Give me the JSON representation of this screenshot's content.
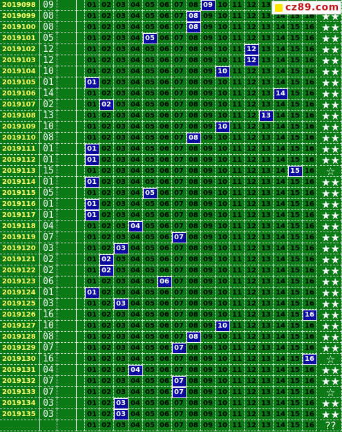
{
  "watermark": {
    "text": "cz89.com",
    "square_color": "#ffe400",
    "text_color": "#c0151a"
  },
  "colors": {
    "background": "#0b7a16",
    "highlight": "#0a0aa0",
    "issue_text": "#ffff66"
  },
  "numbers": [
    "01",
    "02",
    "03",
    "04",
    "05",
    "06",
    "07",
    "08",
    "09",
    "10",
    "11",
    "12",
    "13",
    "14",
    "15",
    "16"
  ],
  "rows": [
    {
      "issue": "2019098",
      "special": "09",
      "hit": 9,
      "stars": "☆★"
    },
    {
      "issue": "2019099",
      "special": "08",
      "hit": 8,
      "stars": "★★"
    },
    {
      "issue": "2019100",
      "special": "08",
      "hit": 8,
      "stars": "★★"
    },
    {
      "issue": "2019101",
      "special": "05",
      "hit": 5,
      "stars": "★★"
    },
    {
      "issue": "2019102",
      "special": "12",
      "hit": 12,
      "stars": "★★"
    },
    {
      "issue": "2019103",
      "special": "12",
      "hit": 12,
      "stars": "★★"
    },
    {
      "issue": "2019104",
      "special": "10",
      "hit": 10,
      "stars": "★★"
    },
    {
      "issue": "2019105",
      "special": "01",
      "hit": 1,
      "stars": "★★"
    },
    {
      "issue": "2019106",
      "special": "14",
      "hit": 14,
      "stars": "★★"
    },
    {
      "issue": "2019107",
      "special": "02",
      "hit": 2,
      "stars": "★★"
    },
    {
      "issue": "2019108",
      "special": "13",
      "hit": 13,
      "stars": "★★"
    },
    {
      "issue": "2019109",
      "special": "10",
      "hit": 10,
      "stars": "★★"
    },
    {
      "issue": "2019110",
      "special": "08",
      "hit": 8,
      "stars": "★★"
    },
    {
      "issue": "2019111",
      "special": "01",
      "hit": 1,
      "stars": "★★"
    },
    {
      "issue": "2019112",
      "special": "01",
      "hit": 1,
      "stars": "★★"
    },
    {
      "issue": "2019113",
      "special": "15",
      "hit": 15,
      "stars": "☆"
    },
    {
      "issue": "2019114",
      "special": "01",
      "hit": 1,
      "stars": "★★"
    },
    {
      "issue": "2019115",
      "special": "05",
      "hit": 5,
      "stars": "★★"
    },
    {
      "issue": "2019116",
      "special": "01",
      "hit": 1,
      "stars": "★★"
    },
    {
      "issue": "2019117",
      "special": "01",
      "hit": 1,
      "stars": "★★"
    },
    {
      "issue": "2019118",
      "special": "04",
      "hit": 4,
      "stars": "★★"
    },
    {
      "issue": "2019119",
      "special": "07",
      "hit": 7,
      "stars": "★★"
    },
    {
      "issue": "2019120",
      "special": "03",
      "hit": 3,
      "stars": "★★"
    },
    {
      "issue": "2019121",
      "special": "02",
      "hit": 2,
      "stars": "★★"
    },
    {
      "issue": "2019122",
      "special": "02",
      "hit": 2,
      "stars": "★★"
    },
    {
      "issue": "2019123",
      "special": "06",
      "hit": 6,
      "stars": "★★"
    },
    {
      "issue": "2019124",
      "special": "01",
      "hit": 1,
      "stars": "★★"
    },
    {
      "issue": "2019125",
      "special": "03",
      "hit": 3,
      "stars": "★★"
    },
    {
      "issue": "2019126",
      "special": "16",
      "hit": 16,
      "stars": "★★"
    },
    {
      "issue": "2019127",
      "special": "10",
      "hit": 10,
      "stars": "★★"
    },
    {
      "issue": "2019128",
      "special": "08",
      "hit": 8,
      "stars": "★★"
    },
    {
      "issue": "2019129",
      "special": "07",
      "hit": 7,
      "stars": "★★"
    },
    {
      "issue": "2019130",
      "special": "16",
      "hit": 16,
      "stars": "☆"
    },
    {
      "issue": "2019131",
      "special": "04",
      "hit": 4,
      "stars": "★★"
    },
    {
      "issue": "2019132",
      "special": "07",
      "hit": 7,
      "stars": "★★"
    },
    {
      "issue": "2019133",
      "special": "07",
      "hit": 7,
      "stars": "☆"
    },
    {
      "issue": "2019134",
      "special": "03",
      "hit": 3,
      "stars": "★★"
    },
    {
      "issue": "2019135",
      "special": "03",
      "hit": 3,
      "stars": "★★"
    },
    {
      "issue": "",
      "special": "",
      "hit": 0,
      "stars": "??"
    }
  ]
}
